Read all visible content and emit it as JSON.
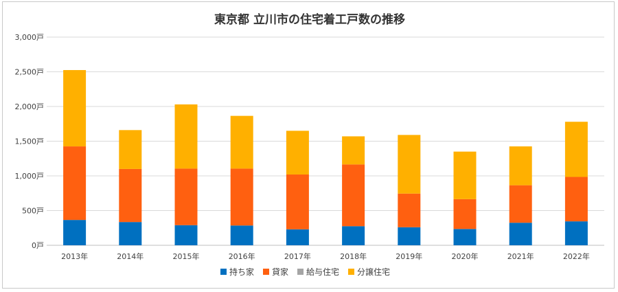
{
  "chart_data": {
    "type": "bar",
    "stacked": true,
    "title": "東京都 立川市の住宅着工戸数の推移",
    "categories": [
      "2013年",
      "2014年",
      "2015年",
      "2016年",
      "2017年",
      "2018年",
      "2019年",
      "2020年",
      "2021年",
      "2022年"
    ],
    "ylim": [
      0,
      3000
    ],
    "yticks": [
      0,
      500,
      1000,
      1500,
      2000,
      2500,
      3000
    ],
    "ytick_labels": [
      "0戸",
      "500戸",
      "1,000戸",
      "1,500戸",
      "2,000戸",
      "2,500戸",
      "3,000戸"
    ],
    "grid": true,
    "legend_position": "bottom",
    "series": [
      {
        "name": "持ち家",
        "color": "#0070c0",
        "values": [
          365,
          335,
          290,
          285,
          230,
          275,
          260,
          235,
          325,
          345
        ]
      },
      {
        "name": "貸家",
        "color": "#ff6010",
        "values": [
          1060,
          765,
          815,
          820,
          790,
          890,
          485,
          430,
          540,
          640
        ]
      },
      {
        "name": "給与住宅",
        "color": "#a5a5a5",
        "values": [
          0,
          0,
          0,
          0,
          0,
          0,
          0,
          0,
          0,
          0
        ]
      },
      {
        "name": "分譲住宅",
        "color": "#ffb000",
        "values": [
          1100,
          560,
          925,
          760,
          630,
          405,
          845,
          685,
          560,
          795
        ]
      }
    ]
  }
}
